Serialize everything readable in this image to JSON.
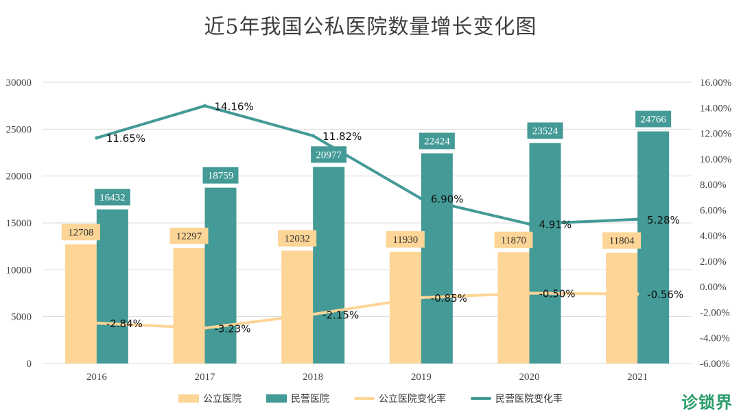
{
  "page": {
    "title": "近5年我国公私医院数量增长变化图",
    "logo_text": "诊锁界"
  },
  "colors": {
    "public": "#FDD596",
    "private": "#439A96",
    "public_line": "#FDD596",
    "private_line": "#439A96",
    "grid": "#d9d9d9",
    "axis_text": "#444444"
  },
  "chart_data": {
    "type": "bar",
    "title": "近5年我国公私医院数量增长变化图",
    "categories": [
      "2016",
      "2017",
      "2018",
      "2019",
      "2020",
      "2021"
    ],
    "series": [
      {
        "name": "公立医院",
        "type": "bar",
        "axis": "left",
        "values": [
          12708,
          12297,
          12032,
          11930,
          11870,
          11804
        ]
      },
      {
        "name": "民营医院",
        "type": "bar",
        "axis": "left",
        "values": [
          16432,
          18759,
          20977,
          22424,
          23524,
          24766
        ]
      },
      {
        "name": "公立医院变化率",
        "type": "line",
        "axis": "right",
        "values": [
          -2.84,
          -3.23,
          -2.15,
          -0.85,
          -0.5,
          -0.56
        ],
        "labels": [
          "-2.84%",
          "-3.23%",
          "-2.15%",
          "-0.85%",
          "-0.50%",
          "-0.56%"
        ]
      },
      {
        "name": "民营医院变化率",
        "type": "line",
        "axis": "right",
        "values": [
          11.65,
          14.16,
          11.82,
          6.9,
          4.91,
          5.28
        ],
        "labels": [
          "11.65%",
          "14.16%",
          "11.82%",
          "6.90%",
          "4.91%",
          "5.28%"
        ]
      }
    ],
    "y_left": {
      "range": [
        0,
        30000
      ],
      "ticks": [
        0,
        5000,
        10000,
        15000,
        20000,
        25000,
        30000
      ],
      "tick_labels": [
        "0",
        "5000",
        "10000",
        "15000",
        "20000",
        "25000",
        "30000"
      ]
    },
    "y_right": {
      "range": [
        -6,
        16
      ],
      "ticks": [
        -6,
        -4,
        -2,
        0,
        2,
        4,
        6,
        8,
        10,
        12,
        14,
        16
      ],
      "tick_labels": [
        "-6.00%",
        "-4.00%",
        "-2.00%",
        "0.00%",
        "2.00%",
        "4.00%",
        "6.00%",
        "8.00%",
        "10.00%",
        "12.00%",
        "14.00%",
        "16.00%"
      ]
    },
    "xlabel": "",
    "ylabel": "",
    "grid": true,
    "legend_position": "bottom"
  }
}
